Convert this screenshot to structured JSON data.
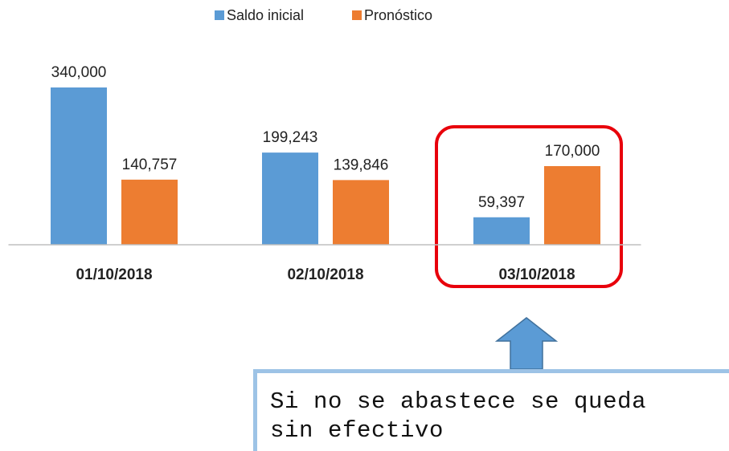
{
  "chart_data": {
    "type": "bar",
    "categories": [
      "01/10/2018",
      "02/10/2018",
      "03/10/2018"
    ],
    "series": [
      {
        "name": "Saldo inicial",
        "color": "#5b9bd5",
        "values": [
          340000,
          199243,
          59397
        ],
        "value_labels": [
          "340,000",
          "199,243",
          "59,397"
        ]
      },
      {
        "name": "Pronóstico",
        "color": "#ed7d31",
        "values": [
          140757,
          139846,
          170000
        ],
        "value_labels": [
          "140,757",
          "139,846",
          "170,000"
        ]
      }
    ],
    "ylim": [
      0,
      400000
    ],
    "legend": "top",
    "annotation": "Si no se abastece se queda sin efectivo"
  }
}
